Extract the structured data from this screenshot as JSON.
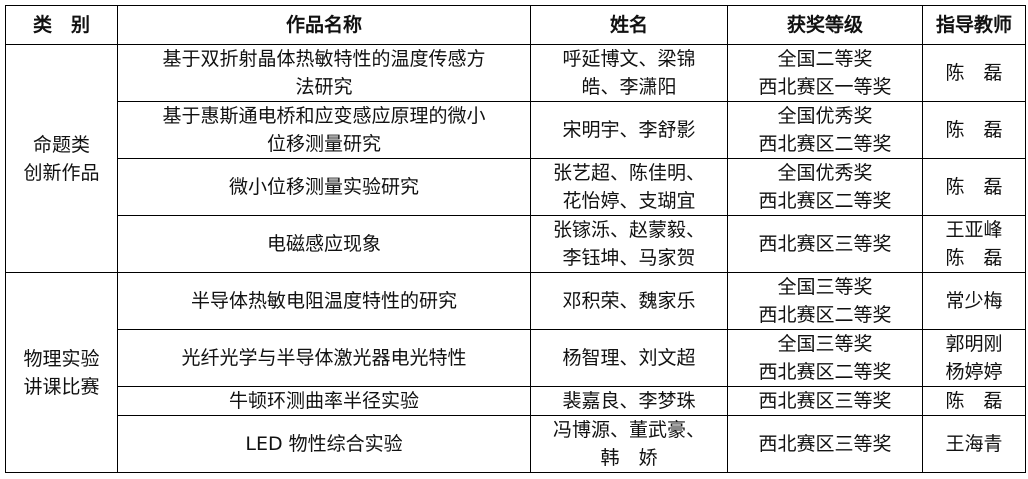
{
  "headers": [
    "类　别",
    "作品名称",
    "姓名",
    "获奖等级",
    "指导教师"
  ],
  "groups": [
    {
      "category": "命题类\n创新作品"
    },
    {
      "category": "物理实验\n讲课比赛"
    }
  ],
  "rows": [
    {
      "title": "基于双折射晶体热敏特性的温度传感方\n法研究",
      "names": "呼延博文、梁锦\n皓、李潇阳",
      "award": "全国二等奖\n西北赛区一等奖",
      "advisor": "陈　磊"
    },
    {
      "title": "基于惠斯通电桥和应变感应原理的微小\n位移测量研究",
      "names": "宋明宇、李舒影",
      "award": "全国优秀奖\n西北赛区二等奖",
      "advisor": "陈　磊"
    },
    {
      "title": "微小位移测量实验研究",
      "names": "张艺超、陈佳明、\n花怡婷、支瑚宜",
      "award": "全国优秀奖\n西北赛区二等奖",
      "advisor": "陈　磊"
    },
    {
      "title": "电磁感应现象",
      "names": "张镓泺、赵蒙毅、\n李钰坤、马家贺",
      "award": "西北赛区三等奖",
      "advisor": "王亚峰\n陈　磊"
    },
    {
      "title": "半导体热敏电阻温度特性的研究",
      "names": "邓积荣、魏家乐",
      "award": "全国三等奖\n西北赛区二等奖",
      "advisor": "常少梅"
    },
    {
      "title": "光纤光学与半导体激光器电光特性",
      "names": "杨智理、刘文超",
      "award": "全国三等奖\n西北赛区二等奖",
      "advisor": "郭明刚\n杨婷婷"
    },
    {
      "title": "牛顿环测曲率半径实验",
      "names": "裴嘉良、李梦珠",
      "award": "西北赛区三等奖",
      "advisor": "陈　磊"
    },
    {
      "title": "LED 物性综合实验",
      "names": "冯博源、董武豪、\n韩　娇",
      "award": "西北赛区三等奖",
      "advisor": "王海青"
    }
  ]
}
